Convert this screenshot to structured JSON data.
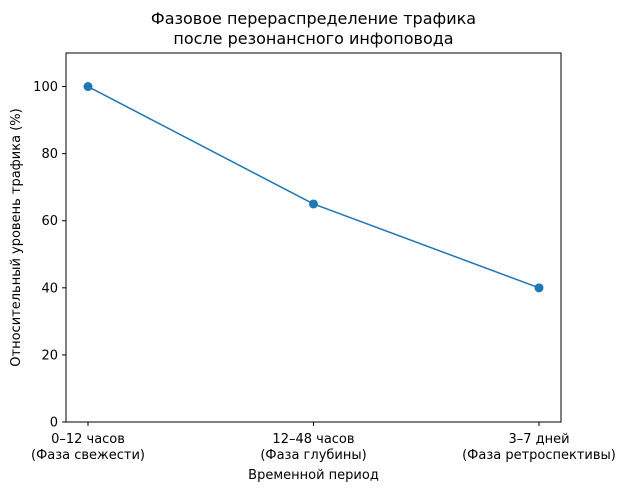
{
  "chart_data": {
    "type": "line",
    "title": "Фазовое перераспределение трафика\nпосле резонансного инфоповода",
    "xlabel": "Временной период",
    "ylabel": "Относительный уровень трафика (%)",
    "categories": [
      "0–12 часов\n(Фаза свежести)",
      "12–48 часов\n(Фаза глубины)",
      "3–7 дней\n(Фаза ретроспективы)"
    ],
    "values": [
      100,
      65,
      40
    ],
    "ylim": [
      0,
      110
    ],
    "yticks": [
      0,
      20,
      40,
      60,
      80,
      100
    ],
    "grid": false,
    "marker": "circle",
    "color": "#1f77b4"
  }
}
